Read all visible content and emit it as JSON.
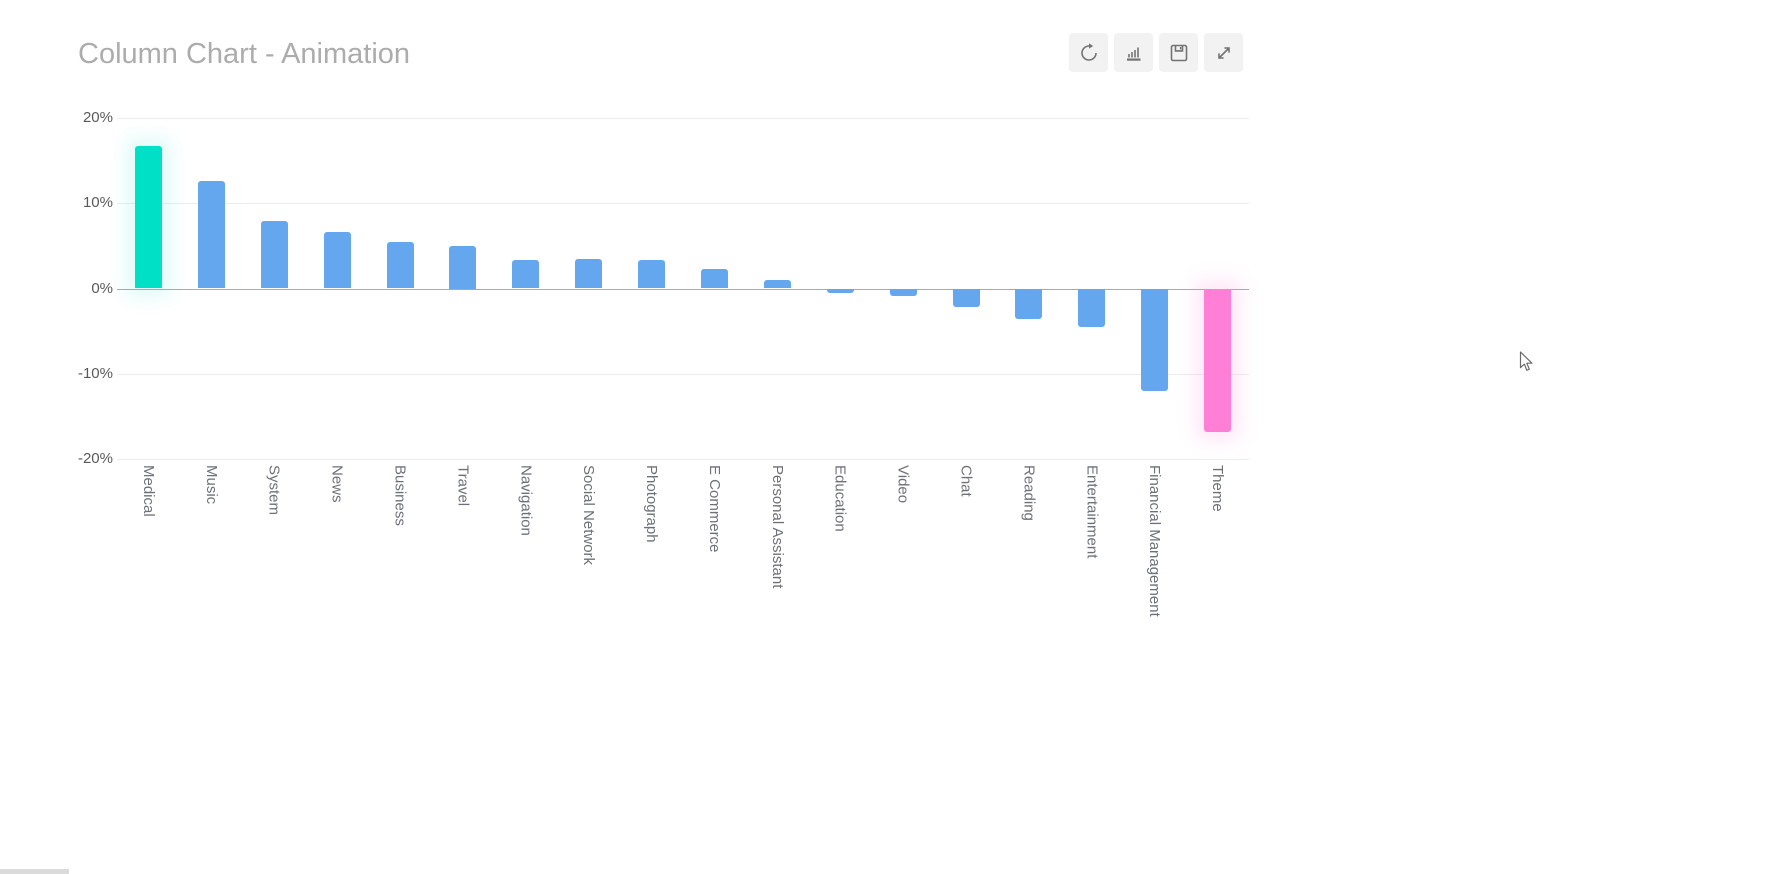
{
  "page": {
    "title": "Column Chart - Animation"
  },
  "toolbar": {
    "buttons": [
      {
        "name": "refresh",
        "icon": "refresh-icon"
      },
      {
        "name": "bar-chart",
        "icon": "bar-chart-icon"
      },
      {
        "name": "save",
        "icon": "save-icon"
      },
      {
        "name": "fullscreen",
        "icon": "fullscreen-expand-icon"
      }
    ]
  },
  "chart_data": {
    "type": "bar",
    "title": "Column Chart - Animation",
    "categories": [
      "Medical",
      "Music",
      "System",
      "News",
      "Business",
      "Travel",
      "Navigation",
      "Social Network",
      "Photograph",
      "E Commerce",
      "Personal Assistant",
      "Education",
      "Video",
      "Chat",
      "Reading",
      "Entertainment",
      "Financial Management",
      "Theme"
    ],
    "values": [
      16.7,
      12.6,
      7.9,
      6.6,
      5.5,
      5.0,
      3.4,
      3.5,
      3.3,
      2.3,
      1.0,
      -0.5,
      -0.9,
      -2.2,
      -3.6,
      -4.5,
      -12.0,
      -16.8
    ],
    "unit": "%",
    "bar_colors": [
      "#00E0C6",
      "#64A7EF",
      "#64A7EF",
      "#64A7EF",
      "#64A7EF",
      "#64A7EF",
      "#64A7EF",
      "#64A7EF",
      "#64A7EF",
      "#64A7EF",
      "#64A7EF",
      "#64A7EF",
      "#64A7EF",
      "#64A7EF",
      "#64A7EF",
      "#64A7EF",
      "#64A7EF",
      "#FF7ED6"
    ],
    "highlight_colors": {
      "first_bar": "#00E0C6",
      "default_bar": "#64A7EF",
      "last_bar": "#FF7ED6"
    },
    "yticks": [
      "20%",
      "10%",
      "0%",
      "-10%",
      "-20%"
    ],
    "ylim": [
      -20,
      20
    ],
    "xlabel": "",
    "ylabel": "",
    "grid": true,
    "legend": false,
    "x_label_rotation_deg": 90,
    "grid_line_color": "#EDEDED",
    "zero_line_color": "#AAAAAA",
    "axis_label_color": "#6E7079",
    "title_color": "#ACACAC"
  }
}
